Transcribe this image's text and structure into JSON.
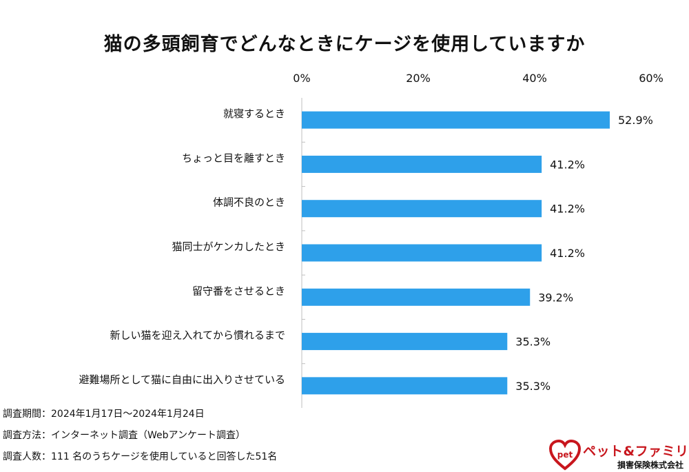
{
  "chart_data": {
    "type": "bar",
    "orientation": "horizontal",
    "title": "猫の多頭飼育でどんなときにケージを使用していますか",
    "categories": [
      "就寝するとき",
      "ちょっと目を離すとき",
      "体調不良のとき",
      "猫同士がケンカしたとき",
      "留守番をさせるとき",
      "新しい猫を迎え入れてから慣れるまで",
      "避難場所として猫に自由に出入りさせている"
    ],
    "values": [
      52.9,
      41.2,
      41.2,
      41.2,
      39.2,
      35.3,
      35.3
    ],
    "value_labels": [
      "52.9%",
      "41.2%",
      "41.2%",
      "41.2%",
      "39.2%",
      "35.3%",
      "35.3%"
    ],
    "xlim": [
      0,
      60
    ],
    "x_ticks": [
      0,
      20,
      40,
      60
    ],
    "x_tick_labels": [
      "0%",
      "20%",
      "40%",
      "60%"
    ],
    "axis_position": "top",
    "grid": false,
    "legend": "none",
    "bar_color": "#2ea0ea"
  },
  "notes": {
    "period": "調査期間：2024年1月17日～2024年1月24日",
    "method": "調査方法：インターネット調査（Webアンケート調査）",
    "respondents": "調査人数：111 名のうちケージを使用していると回答した51名"
  },
  "logo": {
    "mark": "pet",
    "name": "ペット&ファミリー",
    "company": "損害保険株式会社",
    "color": "#c8161d"
  }
}
